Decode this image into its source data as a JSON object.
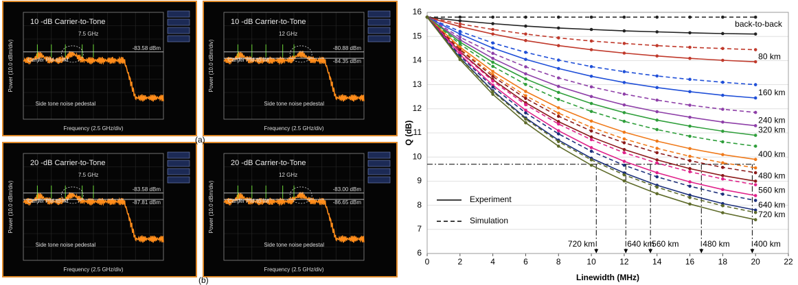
{
  "panels": [
    {
      "title": "10 -dB Carrier-to-Tone",
      "frequency": "7.5 GHz",
      "levels": [
        "-83.58 dBm"
      ],
      "carrier_note": "Carrier PM-to-IM",
      "pedestal_note": "Side tone noise pedestal",
      "y_label": "Power (10.0 dBm/div)",
      "x_label": "Frequency (2.5 GHz/div)"
    },
    {
      "title": "10 -dB Carrier-to-Tone",
      "frequency": "12 GHz",
      "levels": [
        "-80.88 dBm",
        "-84.35 dBm"
      ],
      "carrier_note": "Carrier PM-to-IM",
      "pedestal_note": "Side tone noise pedestal",
      "y_label": "Power (10.0 dBm/div)",
      "x_label": "Frequency (2.5 GHz/div)"
    },
    {
      "title": "20 -dB Carrier-to-Tone",
      "frequency": "7.5 GHz",
      "levels": [
        "-83.58 dBm",
        "-87.81 dBm"
      ],
      "carrier_note": "Carrier PM-to-IM",
      "pedestal_note": "Side tone noise pedestal",
      "y_label": "Power (10.0 dBm/div)",
      "x_label": "Frequency (2.5 GHz/div)"
    },
    {
      "title": "20 -dB Carrier-to-Tone",
      "frequency": "12 GHz",
      "levels": [
        "-83.00 dBm",
        "-86.65 dBm"
      ],
      "carrier_note": "Carrier PM-to-IM",
      "pedestal_note": "Side tone noise pedestal",
      "y_label": "Power (10.0 dBm/div)",
      "x_label": "Frequency (2.5 GHz/div)"
    }
  ],
  "captions": [
    "(a)",
    "(b)"
  ],
  "chart_data": {
    "type": "line",
    "x_label": "Linewidth (MHz)",
    "y_label": "Q (dB)",
    "xlim": [
      0,
      22
    ],
    "xticks": [
      0,
      2,
      4,
      6,
      8,
      10,
      12,
      14,
      16,
      18,
      20,
      22
    ],
    "ylim": [
      6,
      16
    ],
    "yticks": [
      6,
      7,
      8,
      9,
      10,
      11,
      12,
      13,
      14,
      15,
      16
    ],
    "grid": true,
    "legend": {
      "experiment": "Experiment",
      "simulation": "Simulation"
    },
    "x": [
      0,
      2,
      4,
      6,
      8,
      10,
      12,
      14,
      16,
      18,
      20
    ],
    "series": [
      {
        "label": "back-to-back",
        "color": "#222222",
        "experiment": [
          15.8,
          15.65,
          15.53,
          15.43,
          15.35,
          15.29,
          15.23,
          15.19,
          15.15,
          15.12,
          15.1
        ],
        "simulation": [
          15.8,
          15.8,
          15.8,
          15.8,
          15.8,
          15.8,
          15.8,
          15.8,
          15.8,
          15.8,
          15.8
        ]
      },
      {
        "label": "80 km",
        "color": "#c0392b",
        "experiment": [
          15.8,
          15.41,
          15.1,
          14.83,
          14.62,
          14.45,
          14.31,
          14.19,
          14.09,
          14.01,
          13.95
        ],
        "simulation": [
          15.8,
          15.52,
          15.29,
          15.1,
          14.94,
          14.81,
          14.71,
          14.62,
          14.55,
          14.5,
          14.45
        ]
      },
      {
        "label": "160 km",
        "color": "#1f4fd8",
        "experiment": [
          15.8,
          15.1,
          14.52,
          14.05,
          13.67,
          13.35,
          13.09,
          12.88,
          12.71,
          12.56,
          12.45
        ],
        "simulation": [
          15.8,
          15.21,
          14.73,
          14.34,
          14.02,
          13.75,
          13.54,
          13.36,
          13.22,
          13.1,
          13.0
        ]
      },
      {
        "label": "240 km",
        "color": "#8e3fa8",
        "experiment": [
          15.8,
          14.86,
          14.09,
          13.45,
          12.93,
          12.51,
          12.16,
          11.88,
          11.65,
          11.45,
          11.3
        ],
        "simulation": [
          15.8,
          14.97,
          14.3,
          13.74,
          13.28,
          12.91,
          12.61,
          12.36,
          12.15,
          11.98,
          11.85
        ]
      },
      {
        "label": "320 km",
        "color": "#2e9e3a",
        "experiment": [
          15.8,
          14.77,
          13.93,
          13.24,
          12.68,
          12.22,
          11.84,
          11.53,
          11.28,
          11.07,
          10.9
        ],
        "simulation": [
          15.8,
          14.68,
          13.76,
          13.01,
          12.39,
          11.89,
          11.48,
          11.14,
          10.86,
          10.63,
          10.45
        ]
      },
      {
        "label": "400 km",
        "color": "#f07a1a",
        "experiment": [
          15.8,
          14.56,
          13.55,
          12.72,
          12.04,
          11.49,
          11.03,
          10.66,
          10.35,
          10.1,
          9.9
        ],
        "simulation": [
          15.8,
          14.49,
          13.42,
          12.54,
          11.82,
          11.23,
          10.75,
          10.36,
          10.03,
          9.76,
          9.55
        ]
      },
      {
        "label": "480 km",
        "color": "#8b1a1a",
        "experiment": [
          15.8,
          14.37,
          13.21,
          12.25,
          11.47,
          10.83,
          10.31,
          9.88,
          9.52,
          9.23,
          9.0
        ],
        "simulation": [
          15.8,
          14.45,
          13.34,
          12.43,
          11.69,
          11.08,
          10.59,
          10.18,
          9.85,
          9.57,
          9.35
        ]
      },
      {
        "label": "560 km",
        "color": "#e0218a",
        "experiment": [
          15.8,
          14.25,
          12.98,
          11.94,
          11.09,
          10.39,
          9.82,
          9.35,
          8.97,
          8.65,
          8.4
        ],
        "simulation": [
          15.8,
          14.34,
          13.15,
          12.17,
          11.37,
          10.72,
          10.18,
          9.75,
          9.39,
          9.09,
          8.85
        ]
      },
      {
        "label": "640 km",
        "color": "#1b2f7a",
        "experiment": [
          15.8,
          14.12,
          12.75,
          11.62,
          10.7,
          9.95,
          9.34,
          8.83,
          8.42,
          8.07,
          7.8
        ],
        "simulation": [
          15.8,
          14.2,
          12.9,
          11.83,
          10.96,
          10.24,
          9.66,
          9.18,
          8.79,
          8.46,
          8.2
        ]
      },
      {
        "label": "720 km",
        "color": "#5e6b2a",
        "experiment": [
          15.8,
          14.04,
          12.6,
          11.42,
          10.45,
          9.66,
          9.01,
          8.48,
          8.05,
          7.69,
          7.4
        ],
        "simulation": [
          15.8,
          14.1,
          12.71,
          11.57,
          10.64,
          9.88,
          9.26,
          8.75,
          8.32,
          7.98,
          7.7
        ]
      }
    ],
    "threshold": 9.7,
    "crossings": [
      {
        "x": 10.3,
        "label": "720 km"
      },
      {
        "x": 12.1,
        "label": "640 km"
      },
      {
        "x": 13.6,
        "label": "560 km"
      },
      {
        "x": 16.7,
        "label": "480 km"
      },
      {
        "x": 19.8,
        "label": "400 km"
      }
    ]
  }
}
